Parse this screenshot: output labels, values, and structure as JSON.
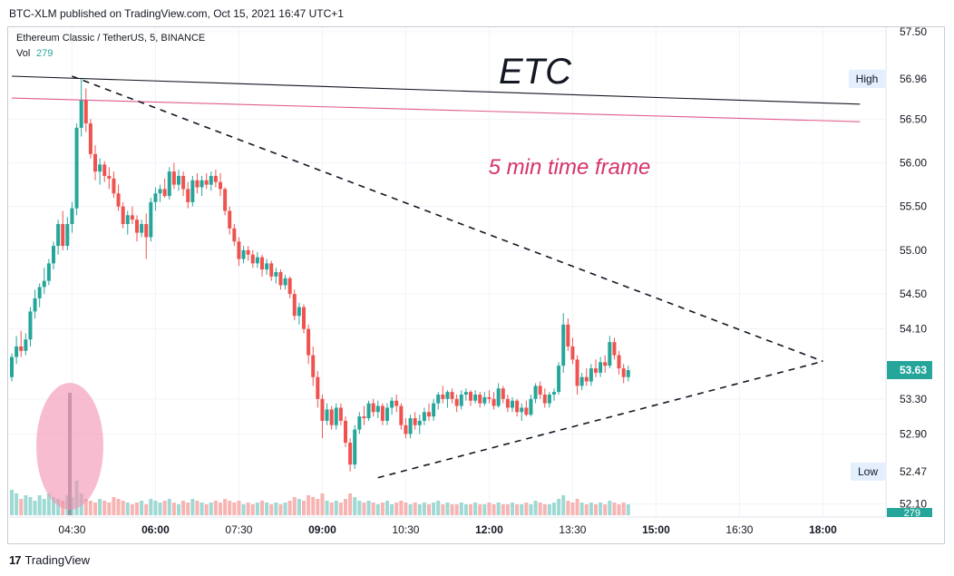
{
  "header": {
    "published_line": "BTC-XLM published on TradingView.com, Oct 15, 2021 16:47 UTC+1"
  },
  "legend": {
    "symbol_line": "Ethereum Classic / TetherUS, 5, BINANCE",
    "vol_label": "Vol",
    "vol_value": "279"
  },
  "annotations": {
    "title": "ETC",
    "subtitle": "5 min time frame"
  },
  "price_axis": {
    "labels": [
      "57.50",
      "56.50",
      "56.00",
      "55.50",
      "55.00",
      "54.50",
      "54.10",
      "53.30",
      "52.90",
      "52.10"
    ],
    "high_label": "High",
    "high_value": "56.96",
    "low_label": "Low",
    "low_value": "52.47",
    "last_price": "53.63",
    "vol_badge": "279"
  },
  "time_axis": {
    "labels": [
      "04:30",
      "06:00",
      "07:30",
      "09:00",
      "10:30",
      "12:00",
      "13:30",
      "15:00",
      "16:30",
      "18:00"
    ]
  },
  "footer": {
    "brand": "TradingView"
  },
  "colors": {
    "up": "#26a69a",
    "down": "#ef5350",
    "up_vol": "#9ed9d3",
    "down_vol": "#f7b4b3",
    "resistance": "#e05b8f",
    "annotation_pink": "#d6336c",
    "highlight": "#f48fb1"
  },
  "chart_data": {
    "type": "candlestick",
    "symbol": "Ethereum Classic / TetherUS",
    "interval": "5",
    "exchange": "BINANCE",
    "x_start": "03:25",
    "x_step_minutes": 5,
    "ylim": [
      51.95,
      57.55
    ],
    "session_high": 56.96,
    "session_low": 52.47,
    "last": 53.63,
    "ohlc": [
      [
        53.55,
        53.82,
        53.5,
        53.78
      ],
      [
        53.78,
        54.02,
        53.7,
        53.9
      ],
      [
        53.9,
        54.08,
        53.78,
        53.85
      ],
      [
        53.85,
        54.05,
        53.8,
        53.98
      ],
      [
        53.98,
        54.35,
        53.9,
        54.3
      ],
      [
        54.3,
        54.55,
        54.22,
        54.45
      ],
      [
        54.45,
        54.62,
        54.35,
        54.58
      ],
      [
        54.58,
        54.8,
        54.5,
        54.65
      ],
      [
        54.65,
        54.9,
        54.6,
        54.85
      ],
      [
        54.85,
        55.1,
        54.78,
        55.05
      ],
      [
        55.05,
        55.35,
        54.95,
        55.3
      ],
      [
        55.3,
        55.45,
        55.0,
        55.05
      ],
      [
        55.05,
        55.38,
        55.0,
        55.3
      ],
      [
        55.3,
        55.55,
        55.2,
        55.48
      ],
      [
        55.48,
        56.45,
        55.4,
        56.4
      ],
      [
        56.4,
        56.96,
        56.3,
        56.72
      ],
      [
        56.72,
        56.85,
        56.35,
        56.45
      ],
      [
        56.45,
        56.5,
        56.05,
        56.1
      ],
      [
        56.1,
        56.2,
        55.8,
        55.9
      ],
      [
        55.9,
        56.05,
        55.75,
        55.98
      ],
      [
        55.98,
        56.02,
        55.78,
        55.85
      ],
      [
        55.85,
        55.95,
        55.7,
        55.82
      ],
      [
        55.82,
        55.9,
        55.6,
        55.65
      ],
      [
        55.65,
        55.75,
        55.45,
        55.5
      ],
      [
        55.5,
        55.55,
        55.25,
        55.3
      ],
      [
        55.3,
        55.45,
        55.18,
        55.4
      ],
      [
        55.4,
        55.5,
        55.3,
        55.35
      ],
      [
        55.35,
        55.4,
        55.1,
        55.2
      ],
      [
        55.2,
        55.35,
        55.15,
        55.3
      ],
      [
        55.3,
        55.42,
        54.9,
        55.15
      ],
      [
        55.15,
        55.6,
        55.1,
        55.55
      ],
      [
        55.55,
        55.72,
        55.45,
        55.65
      ],
      [
        55.65,
        55.75,
        55.55,
        55.7
      ],
      [
        55.7,
        55.82,
        55.6,
        55.62
      ],
      [
        55.62,
        55.95,
        55.58,
        55.9
      ],
      [
        55.9,
        56.0,
        55.7,
        55.75
      ],
      [
        55.75,
        55.92,
        55.68,
        55.85
      ],
      [
        55.85,
        55.9,
        55.62,
        55.7
      ],
      [
        55.7,
        55.78,
        55.48,
        55.55
      ],
      [
        55.55,
        55.85,
        55.5,
        55.8
      ],
      [
        55.8,
        55.88,
        55.65,
        55.72
      ],
      [
        55.72,
        55.85,
        55.62,
        55.8
      ],
      [
        55.8,
        55.88,
        55.7,
        55.75
      ],
      [
        55.75,
        55.9,
        55.68,
        55.85
      ],
      [
        55.85,
        55.92,
        55.72,
        55.78
      ],
      [
        55.78,
        55.88,
        55.62,
        55.7
      ],
      [
        55.7,
        55.72,
        55.4,
        55.45
      ],
      [
        55.45,
        55.5,
        55.18,
        55.25
      ],
      [
        55.25,
        55.3,
        55.05,
        55.1
      ],
      [
        55.1,
        55.15,
        54.82,
        54.9
      ],
      [
        54.9,
        55.05,
        54.85,
        55.0
      ],
      [
        55.0,
        55.05,
        54.88,
        54.95
      ],
      [
        54.95,
        55.0,
        54.8,
        54.85
      ],
      [
        54.85,
        54.98,
        54.8,
        54.92
      ],
      [
        54.92,
        54.95,
        54.7,
        54.78
      ],
      [
        54.78,
        54.9,
        54.72,
        54.85
      ],
      [
        54.85,
        54.88,
        54.65,
        54.7
      ],
      [
        54.7,
        54.8,
        54.62,
        54.75
      ],
      [
        54.75,
        54.78,
        54.55,
        54.6
      ],
      [
        54.6,
        54.72,
        54.55,
        54.68
      ],
      [
        54.68,
        54.7,
        54.45,
        54.5
      ],
      [
        54.5,
        54.55,
        54.2,
        54.25
      ],
      [
        54.25,
        54.4,
        54.15,
        54.35
      ],
      [
        54.35,
        54.38,
        54.05,
        54.1
      ],
      [
        54.1,
        54.15,
        53.7,
        53.8
      ],
      [
        53.8,
        53.9,
        53.45,
        53.55
      ],
      [
        53.55,
        53.62,
        53.2,
        53.3
      ],
      [
        53.3,
        53.35,
        52.85,
        53.05
      ],
      [
        53.05,
        53.25,
        53.0,
        53.18
      ],
      [
        53.18,
        53.22,
        52.95,
        53.0
      ],
      [
        53.0,
        53.25,
        52.95,
        53.2
      ],
      [
        53.2,
        53.25,
        53.0,
        53.05
      ],
      [
        53.05,
        53.1,
        52.75,
        52.8
      ],
      [
        52.8,
        52.85,
        52.47,
        52.55
      ],
      [
        52.55,
        53.0,
        52.5,
        52.95
      ],
      [
        52.95,
        53.15,
        52.9,
        53.1
      ],
      [
        53.1,
        53.22,
        53.0,
        53.08
      ],
      [
        53.08,
        53.28,
        53.05,
        53.25
      ],
      [
        53.25,
        53.3,
        53.1,
        53.15
      ],
      [
        53.15,
        53.28,
        53.08,
        53.22
      ],
      [
        53.22,
        53.25,
        53.0,
        53.05
      ],
      [
        53.05,
        53.25,
        53.0,
        53.2
      ],
      [
        53.2,
        53.32,
        53.12,
        53.28
      ],
      [
        53.28,
        53.35,
        53.15,
        53.22
      ],
      [
        53.22,
        53.25,
        52.95,
        53.0
      ],
      [
        53.0,
        53.08,
        52.85,
        52.9
      ],
      [
        52.9,
        53.12,
        52.85,
        53.08
      ],
      [
        53.08,
        53.15,
        52.95,
        53.0
      ],
      [
        53.0,
        53.12,
        52.9,
        53.05
      ],
      [
        53.05,
        53.2,
        53.0,
        53.15
      ],
      [
        53.15,
        53.25,
        53.05,
        53.1
      ],
      [
        53.1,
        53.3,
        53.05,
        53.25
      ],
      [
        53.25,
        53.38,
        53.18,
        53.35
      ],
      [
        53.35,
        53.45,
        53.25,
        53.3
      ],
      [
        53.3,
        53.4,
        53.2,
        53.38
      ],
      [
        53.38,
        53.42,
        53.25,
        53.3
      ],
      [
        53.3,
        53.35,
        53.15,
        53.22
      ],
      [
        53.22,
        53.4,
        53.18,
        53.35
      ],
      [
        53.35,
        53.42,
        53.28,
        53.38
      ],
      [
        53.38,
        53.4,
        53.22,
        53.28
      ],
      [
        53.28,
        53.4,
        53.25,
        53.35
      ],
      [
        53.35,
        53.38,
        53.2,
        53.25
      ],
      [
        53.25,
        53.38,
        53.22,
        53.32
      ],
      [
        53.32,
        53.4,
        53.25,
        53.3
      ],
      [
        53.3,
        53.38,
        53.18,
        53.22
      ],
      [
        53.22,
        53.48,
        53.2,
        53.42
      ],
      [
        53.42,
        53.45,
        53.25,
        53.3
      ],
      [
        53.3,
        53.35,
        53.15,
        53.2
      ],
      [
        53.2,
        53.32,
        53.15,
        53.28
      ],
      [
        53.28,
        53.3,
        53.1,
        53.15
      ],
      [
        53.15,
        53.25,
        53.05,
        53.2
      ],
      [
        53.2,
        53.28,
        53.1,
        53.12
      ],
      [
        53.12,
        53.35,
        53.1,
        53.3
      ],
      [
        53.3,
        53.48,
        53.25,
        53.45
      ],
      [
        53.45,
        53.5,
        53.3,
        53.35
      ],
      [
        53.35,
        53.42,
        53.2,
        53.25
      ],
      [
        53.25,
        53.38,
        53.2,
        53.35
      ],
      [
        53.35,
        53.42,
        53.28,
        53.38
      ],
      [
        53.38,
        53.72,
        53.35,
        53.68
      ],
      [
        53.68,
        54.28,
        53.6,
        54.15
      ],
      [
        54.15,
        54.22,
        53.85,
        53.9
      ],
      [
        53.9,
        54.0,
        53.7,
        53.75
      ],
      [
        53.75,
        53.8,
        53.35,
        53.45
      ],
      [
        53.45,
        53.6,
        53.4,
        53.55
      ],
      [
        53.55,
        53.65,
        53.45,
        53.5
      ],
      [
        53.5,
        53.7,
        53.45,
        53.65
      ],
      [
        53.65,
        53.75,
        53.55,
        53.6
      ],
      [
        53.6,
        53.78,
        53.55,
        53.72
      ],
      [
        53.72,
        53.8,
        53.6,
        53.68
      ],
      [
        53.68,
        54.02,
        53.65,
        53.95
      ],
      [
        53.95,
        54.0,
        53.75,
        53.8
      ],
      [
        53.8,
        53.85,
        53.58,
        53.65
      ],
      [
        53.65,
        53.7,
        53.48,
        53.55
      ],
      [
        53.55,
        53.68,
        53.5,
        53.63
      ]
    ],
    "volume": [
      70,
      60,
      45,
      55,
      50,
      40,
      55,
      45,
      60,
      50,
      45,
      40,
      55,
      50,
      95,
      60,
      45,
      40,
      35,
      45,
      40,
      35,
      50,
      45,
      40,
      35,
      30,
      35,
      40,
      30,
      45,
      40,
      35,
      40,
      45,
      35,
      30,
      40,
      35,
      45,
      40,
      35,
      30,
      35,
      40,
      35,
      45,
      40,
      35,
      40,
      30,
      35,
      30,
      35,
      40,
      35,
      30,
      35,
      30,
      35,
      40,
      50,
      45,
      40,
      55,
      50,
      45,
      60,
      40,
      35,
      40,
      35,
      45,
      60,
      50,
      40,
      35,
      40,
      35,
      30,
      35,
      40,
      30,
      35,
      40,
      35,
      30,
      35,
      30,
      35,
      30,
      35,
      40,
      30,
      35,
      30,
      30,
      35,
      30,
      30,
      35,
      30,
      30,
      35,
      30,
      35,
      30,
      30,
      35,
      30,
      30,
      35,
      30,
      40,
      35,
      30,
      30,
      35,
      45,
      55,
      40,
      35,
      45,
      35,
      30,
      35,
      30,
      35,
      30,
      40,
      35,
      30,
      35,
      30
    ],
    "trendlines": [
      {
        "style": "solid",
        "color": "#131722",
        "points": [
          [
            "03:25",
            56.99
          ],
          [
            "18:40",
            56.67
          ]
        ]
      },
      {
        "style": "solid",
        "color": "#e05b8f",
        "points": [
          [
            "03:25",
            56.74
          ],
          [
            "18:40",
            56.47
          ]
        ]
      },
      {
        "style": "dashed",
        "color": "#131722",
        "points": [
          [
            "04:30",
            56.99
          ],
          [
            "18:00",
            53.73
          ]
        ]
      },
      {
        "style": "dashed",
        "color": "#131722",
        "points": [
          [
            "10:00",
            52.4
          ],
          [
            "18:00",
            53.73
          ]
        ]
      }
    ]
  }
}
